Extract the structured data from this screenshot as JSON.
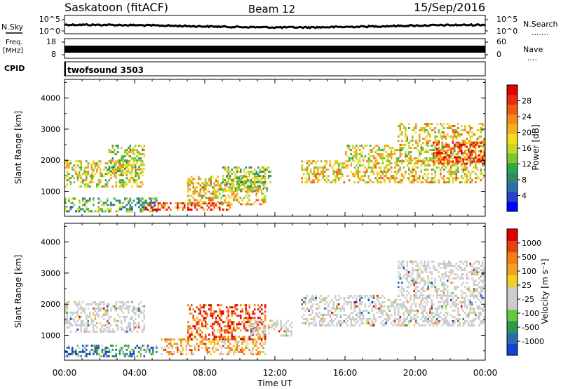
{
  "header": {
    "title": "Saskatoon (fitACF)",
    "beam": "Beam 12",
    "date": "15/Sep/2016"
  },
  "strips": {
    "nsky_label": "N.Sky",
    "nsky_ticks": [
      "10^5",
      "10^0"
    ],
    "nsearch_label": "N.Search",
    "nsearch_dots": ".......",
    "freq_label_line1": "Freq.",
    "freq_label_line2": "[MHz]",
    "freq_ticks": [
      "18",
      "8"
    ],
    "nave_label": "Nave",
    "nave_dots": "....",
    "nave_ticks": [
      "60",
      "0"
    ],
    "cpid_label": "CPID",
    "cpid_value": "twofsound 3503"
  },
  "chart_data": [
    {
      "type": "heatmap",
      "title": "",
      "xlabel": "",
      "ylabel": "Slant Range [km]",
      "ylim": [
        200,
        4600
      ],
      "yticks": [
        "1000",
        "2000",
        "3000",
        "4000"
      ],
      "xlim": [
        0,
        24
      ],
      "colorbar": {
        "label": "Power [dB]",
        "ticks": [
          "28",
          "24",
          "20",
          "16",
          "12",
          "8",
          "4"
        ],
        "colors": [
          "#0000ff",
          "#2244cc",
          "#2e6db0",
          "#2f8a66",
          "#2ea845",
          "#7cc430",
          "#c8d820",
          "#f0e020",
          "#f6b020",
          "#f88a18",
          "#f05a14",
          "#e82a10",
          "#e00000"
        ]
      },
      "bands": [
        {
          "t0": 0.0,
          "t1": 4.5,
          "r0": 1150,
          "r1": 2000,
          "level": 0.55
        },
        {
          "t0": 2.5,
          "t1": 4.6,
          "r0": 1500,
          "r1": 2500,
          "level": 0.5
        },
        {
          "t0": 0.0,
          "t1": 5.3,
          "r0": 350,
          "r1": 800,
          "level": 0.35
        },
        {
          "t0": 4.5,
          "t1": 9.5,
          "r0": 380,
          "r1": 650,
          "level": 0.85
        },
        {
          "t0": 7.0,
          "t1": 11.5,
          "r0": 600,
          "r1": 1500,
          "level": 0.6
        },
        {
          "t0": 9.0,
          "t1": 11.8,
          "r0": 1000,
          "r1": 1800,
          "level": 0.45
        },
        {
          "t0": 13.5,
          "t1": 24.0,
          "r0": 1300,
          "r1": 2000,
          "level": 0.6
        },
        {
          "t0": 16.0,
          "t1": 24.0,
          "r0": 2000,
          "r1": 2500,
          "level": 0.55
        },
        {
          "t0": 19.0,
          "t1": 24.0,
          "r0": 2500,
          "r1": 3200,
          "level": 0.6
        },
        {
          "t0": 21.0,
          "t1": 24.0,
          "r0": 1900,
          "r1": 2600,
          "level": 0.85
        }
      ]
    },
    {
      "type": "heatmap",
      "title": "",
      "xlabel": "Time UT",
      "ylabel": "Slant Range [km]",
      "ylim": [
        200,
        4600
      ],
      "yticks": [
        "1000",
        "2000",
        "3000",
        "4000"
      ],
      "xlim": [
        0,
        24
      ],
      "xticks": [
        "00:00",
        "04:00",
        "08:00",
        "12:00",
        "16:00",
        "20:00",
        "00:00"
      ],
      "colorbar": {
        "label": "Velocity [m s⁻¹]",
        "ticks": [
          "1000",
          "500",
          "100",
          "25",
          "-25",
          "-100",
          "-500",
          "-1000"
        ],
        "colors": [
          "#1a3cd8",
          "#2a6cb0",
          "#2a9a4a",
          "#66c840",
          "#cccccc",
          "#cccccc",
          "#f0d020",
          "#f5a020",
          "#f08010",
          "#e84010",
          "#e00000"
        ]
      },
      "bands": [
        {
          "t0": 0.0,
          "t1": 4.6,
          "r0": 1100,
          "r1": 2100,
          "level": 0.5
        },
        {
          "t0": 0.0,
          "t1": 5.3,
          "r0": 300,
          "r1": 700,
          "level": 0.2
        },
        {
          "t0": 5.5,
          "t1": 11.5,
          "r0": 400,
          "r1": 900,
          "level": 0.65
        },
        {
          "t0": 7.0,
          "t1": 11.5,
          "r0": 900,
          "r1": 2000,
          "level": 0.85
        },
        {
          "t0": 10.5,
          "t1": 13.0,
          "r0": 1000,
          "r1": 1500,
          "level": 0.5
        },
        {
          "t0": 13.5,
          "t1": 24.0,
          "r0": 1300,
          "r1": 2300,
          "level": 0.5
        },
        {
          "t0": 19.0,
          "t1": 24.0,
          "r0": 2300,
          "r1": 3400,
          "level": 0.5
        }
      ]
    }
  ]
}
